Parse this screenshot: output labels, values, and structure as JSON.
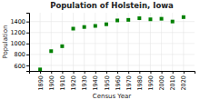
{
  "chart_data": {
    "type": "scatter",
    "title": "Population of Holstein, Iowa",
    "xlabel": "Census Year",
    "ylabel": "Population",
    "x": [
      1890,
      1900,
      1910,
      1920,
      1930,
      1940,
      1950,
      1960,
      1970,
      1980,
      1990,
      2000,
      2010,
      2020
    ],
    "values": [
      527,
      860,
      950,
      1270,
      1300,
      1320,
      1350,
      1420,
      1430,
      1460,
      1440,
      1450,
      1400,
      1480
    ],
    "color": "#008000",
    "marker": "square",
    "xlim": [
      1880,
      2030
    ],
    "xticks": [
      1890,
      1900,
      1910,
      1920,
      1930,
      1940,
      1950,
      1960,
      1970,
      1980,
      1990,
      2000,
      2010,
      2020
    ],
    "ylim": [
      500,
      1560
    ],
    "yticks": [
      600,
      800,
      1000,
      1200,
      1400
    ],
    "grid": true
  }
}
